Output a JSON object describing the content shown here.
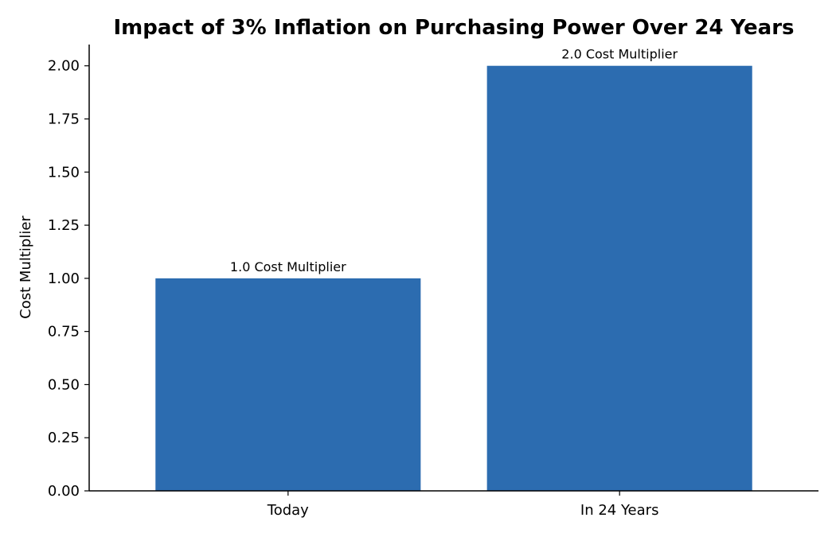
{
  "chart_data": {
    "type": "bar",
    "title": "Impact of 3% Inflation on Purchasing Power Over 24 Years",
    "xlabel": "",
    "ylabel": "Cost Multiplier",
    "categories": [
      "Today",
      "In 24 Years"
    ],
    "values": [
      1.0,
      2.0
    ],
    "data_labels": [
      "1.0 Cost Multiplier",
      "2.0 Cost Multiplier"
    ],
    "ylim": [
      0,
      2.1
    ],
    "yticks": [
      0.0,
      0.25,
      0.5,
      0.75,
      1.0,
      1.25,
      1.5,
      1.75,
      2.0
    ],
    "ytick_labels": [
      "0.00",
      "0.25",
      "0.50",
      "0.75",
      "1.00",
      "1.25",
      "1.50",
      "1.75",
      "2.00"
    ],
    "bar_color": "#2c6cb0",
    "grid": false,
    "legend": "none"
  }
}
